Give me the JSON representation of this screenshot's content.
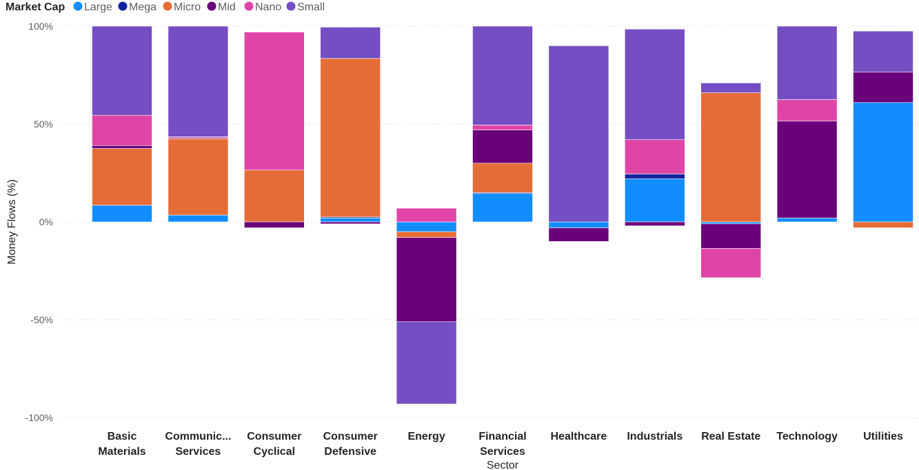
{
  "chart_data": {
    "type": "bar",
    "stacked": true,
    "legend": {
      "title": "Market Cap",
      "placement": "top-left",
      "entries": [
        "Large",
        "Mega",
        "Micro",
        "Mid",
        "Nano",
        "Small"
      ]
    },
    "xlabel": "Sector",
    "ylabel": "Money Flows (%)",
    "ylim": [
      -100,
      100
    ],
    "yticks": [
      {
        "value": 100,
        "label": "100%"
      },
      {
        "value": 50,
        "label": "50%"
      },
      {
        "value": 0,
        "label": "0%"
      },
      {
        "value": -50,
        "label": "-50%"
      },
      {
        "value": -100,
        "label": "-100%"
      }
    ],
    "grid": true,
    "categories": [
      {
        "lines": [
          "Basic",
          "Materials"
        ]
      },
      {
        "lines": [
          "Communic...",
          "Services"
        ]
      },
      {
        "lines": [
          "Consumer",
          "Cyclical"
        ]
      },
      {
        "lines": [
          "Consumer",
          "Defensive"
        ]
      },
      {
        "lines": [
          "Energy"
        ]
      },
      {
        "lines": [
          "Financial",
          "Services"
        ]
      },
      {
        "lines": [
          "Healthcare"
        ]
      },
      {
        "lines": [
          "Industrials"
        ]
      },
      {
        "lines": [
          "Real Estate"
        ]
      },
      {
        "lines": [
          "Technology"
        ]
      },
      {
        "lines": [
          "Utilities"
        ]
      }
    ],
    "series": [
      {
        "name": "Large",
        "color": "#118DFF",
        "values": [
          8.5,
          3.5,
          0,
          2,
          -5,
          14.5,
          -3,
          22,
          -1,
          2,
          61
        ]
      },
      {
        "name": "Mega",
        "color": "#12239E",
        "values": [
          0,
          0,
          0,
          0.5,
          0,
          0.5,
          0,
          2.5,
          0,
          0,
          0
        ]
      },
      {
        "name": "Micro",
        "color": "#E66C37",
        "values": [
          29,
          39,
          26.5,
          81,
          -3,
          15,
          0,
          0,
          66,
          0,
          -3
        ]
      },
      {
        "name": "Mid",
        "color": "#6B007B",
        "values": [
          1.5,
          0.5,
          -3,
          -1,
          -43,
          17,
          -7,
          -2,
          -12.5,
          49.5,
          15.5
        ]
      },
      {
        "name": "Nano",
        "color": "#E044A7",
        "values": [
          15.5,
          0.5,
          70.5,
          0,
          7,
          2.5,
          0,
          17.5,
          -15,
          11,
          0
        ]
      },
      {
        "name": "Small",
        "color": "#744EC2",
        "values": [
          45.5,
          56.5,
          0,
          16,
          -42,
          50.5,
          90,
          56.5,
          5,
          37.5,
          21
        ]
      }
    ]
  }
}
